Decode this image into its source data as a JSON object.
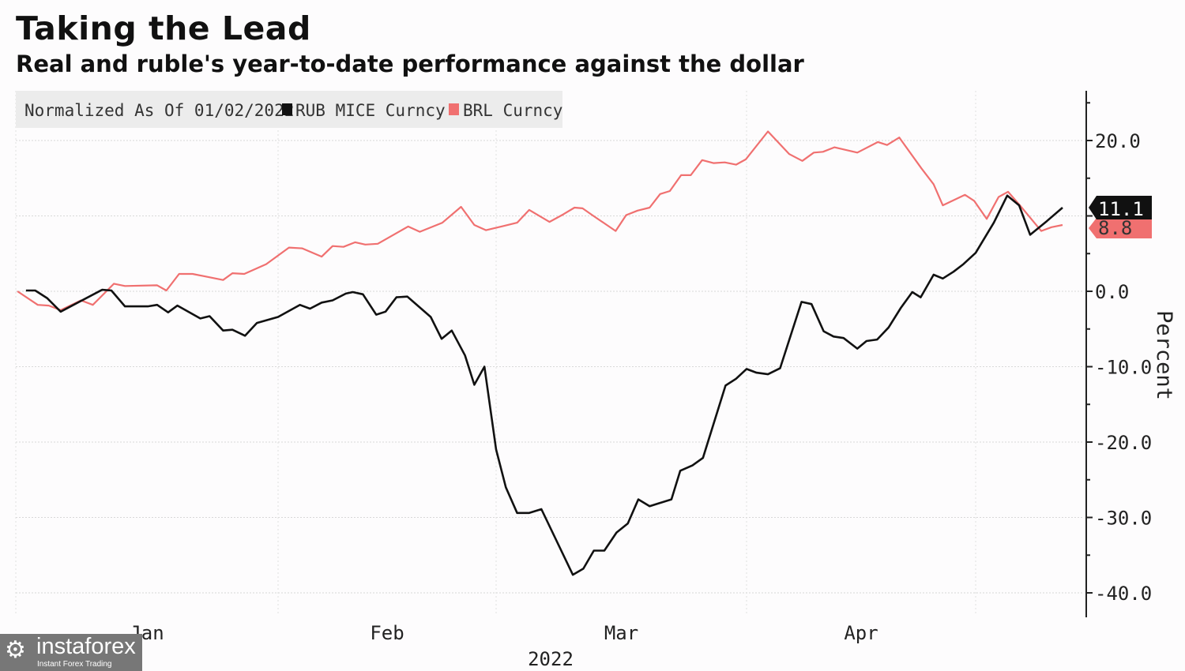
{
  "chart_data": {
    "type": "line",
    "title": "Taking the Lead",
    "subtitle": "Real and ruble's year-to-date performance against the dollar",
    "legend_note": "Normalized As Of 01/02/2022",
    "legend_position": "top-left",
    "xlabel": "2022",
    "ylabel": "Percent",
    "x_units": "days since Jan 1, 2022",
    "xlim": [
      0,
      131
    ],
    "ylim": [
      -42,
      26
    ],
    "month_boundaries": [
      0,
      31,
      59,
      90,
      120
    ],
    "x_tick_labels": [
      {
        "label": "Jan",
        "center": 15.5
      },
      {
        "label": "Feb",
        "center": 45
      },
      {
        "label": "Mar",
        "center": 74.5
      },
      {
        "label": "Apr",
        "center": 105
      }
    ],
    "y_ticks": [
      20,
      0,
      -10,
      -20,
      -30,
      -40
    ],
    "y_tick_labels": [
      "20.0",
      "0.0",
      "-10.0",
      "-20.0",
      "-30.0",
      "-40.0"
    ],
    "grid": true,
    "series": [
      {
        "name": "RUB MICE Curncy",
        "color": "#111111",
        "last_label": "11.1",
        "points": [
          [
            1.2,
            0.1
          ],
          [
            2.3,
            0.1
          ],
          [
            3.7,
            -0.9
          ],
          [
            5.3,
            -2.7
          ],
          [
            7.5,
            -1.4
          ],
          [
            10.2,
            0.2
          ],
          [
            11.3,
            0.1
          ],
          [
            12.9,
            -2.0
          ],
          [
            15.6,
            -2.0
          ],
          [
            16.7,
            -1.8
          ],
          [
            18.0,
            -2.8
          ],
          [
            19.1,
            -1.9
          ],
          [
            21.8,
            -3.6
          ],
          [
            22.9,
            -3.3
          ],
          [
            24.5,
            -5.2
          ],
          [
            25.6,
            -5.1
          ],
          [
            27.1,
            -5.9
          ],
          [
            28.5,
            -4.2
          ],
          [
            31.0,
            -3.4
          ],
          [
            33.8,
            -1.8
          ],
          [
            35.1,
            -2.3
          ],
          [
            36.6,
            -1.5
          ],
          [
            38.0,
            -1.2
          ],
          [
            39.7,
            -0.3
          ],
          [
            40.6,
            -0.1
          ],
          [
            41.9,
            -0.4
          ],
          [
            43.6,
            -3.1
          ],
          [
            44.8,
            -2.7
          ],
          [
            46.2,
            -0.8
          ],
          [
            47.6,
            -0.7
          ],
          [
            50.6,
            -3.4
          ],
          [
            52.0,
            -6.3
          ],
          [
            53.3,
            -5.2
          ],
          [
            55.0,
            -8.5
          ],
          [
            56.2,
            -12.4
          ],
          [
            57.5,
            -10.0
          ],
          [
            59.0,
            -21.0
          ],
          [
            60.2,
            -26.0
          ],
          [
            61.6,
            -29.4
          ],
          [
            63.1,
            -29.4
          ],
          [
            64.6,
            -28.9
          ],
          [
            68.5,
            -37.6
          ],
          [
            69.8,
            -36.8
          ],
          [
            71.1,
            -34.4
          ],
          [
            72.4,
            -34.4
          ],
          [
            73.9,
            -32.0
          ],
          [
            75.3,
            -30.8
          ],
          [
            76.6,
            -27.6
          ],
          [
            78.0,
            -28.5
          ],
          [
            79.2,
            -28.1
          ],
          [
            80.7,
            -27.6
          ],
          [
            81.8,
            -23.8
          ],
          [
            83.3,
            -23.1
          ],
          [
            84.6,
            -22.1
          ],
          [
            87.4,
            -12.5
          ],
          [
            88.7,
            -11.6
          ],
          [
            90.0,
            -10.3
          ],
          [
            91.3,
            -10.8
          ],
          [
            92.8,
            -11.0
          ],
          [
            94.4,
            -10.2
          ],
          [
            97.2,
            -1.4
          ],
          [
            98.5,
            -1.7
          ],
          [
            100.1,
            -5.3
          ],
          [
            101.4,
            -6.0
          ],
          [
            102.7,
            -6.2
          ],
          [
            104.5,
            -7.6
          ],
          [
            105.7,
            -6.6
          ],
          [
            107.1,
            -6.4
          ],
          [
            108.6,
            -4.8
          ],
          [
            110.2,
            -2.2
          ],
          [
            111.7,
            -0.1
          ],
          [
            112.8,
            -0.8
          ],
          [
            114.5,
            2.2
          ],
          [
            115.7,
            1.7
          ],
          [
            117.1,
            2.6
          ],
          [
            118.4,
            3.6
          ],
          [
            120.0,
            5.1
          ],
          [
            122.3,
            9.1
          ],
          [
            124.0,
            12.7
          ],
          [
            125.5,
            11.4
          ],
          [
            126.9,
            7.5
          ],
          [
            129.0,
            9.3
          ],
          [
            131.0,
            11.1
          ]
        ]
      },
      {
        "name": "BRL Curncy",
        "color": "#f07070",
        "last_label": "8.8",
        "points": [
          [
            0.2,
            0
          ],
          [
            2.6,
            -1.8
          ],
          [
            3.9,
            -1.9
          ],
          [
            5.3,
            -2.5
          ],
          [
            7.7,
            -1.2
          ],
          [
            9.1,
            -1.8
          ],
          [
            11.6,
            1.0
          ],
          [
            12.9,
            0.7
          ],
          [
            16.7,
            0.8
          ],
          [
            17.8,
            0.1
          ],
          [
            19.3,
            2.3
          ],
          [
            20.9,
            2.3
          ],
          [
            24.5,
            1.5
          ],
          [
            25.6,
            2.4
          ],
          [
            27.0,
            2.3
          ],
          [
            29.6,
            3.6
          ],
          [
            32.4,
            5.8
          ],
          [
            34.1,
            5.7
          ],
          [
            36.6,
            4.6
          ],
          [
            38.0,
            6.0
          ],
          [
            39.4,
            5.9
          ],
          [
            40.9,
            6.5
          ],
          [
            42.2,
            6.2
          ],
          [
            43.8,
            6.3
          ],
          [
            47.7,
            8.6
          ],
          [
            49.2,
            7.9
          ],
          [
            52.1,
            9.1
          ],
          [
            54.5,
            11.2
          ],
          [
            56.2,
            8.8
          ],
          [
            57.7,
            8.1
          ],
          [
            61.6,
            9.1
          ],
          [
            63.1,
            10.8
          ],
          [
            65.6,
            9.2
          ],
          [
            67.3,
            10.2
          ],
          [
            68.7,
            11.1
          ],
          [
            69.7,
            11.0
          ],
          [
            70.9,
            10.1
          ],
          [
            73.8,
            8.0
          ],
          [
            75.1,
            10.1
          ],
          [
            76.5,
            10.7
          ],
          [
            78.0,
            11.1
          ],
          [
            79.3,
            12.9
          ],
          [
            80.5,
            13.3
          ],
          [
            81.9,
            15.4
          ],
          [
            83.1,
            15.4
          ],
          [
            84.5,
            17.4
          ],
          [
            85.9,
            17.0
          ],
          [
            87.3,
            17.1
          ],
          [
            88.7,
            16.8
          ],
          [
            89.9,
            17.5
          ],
          [
            92.8,
            21.2
          ],
          [
            95.6,
            18.2
          ],
          [
            97.3,
            17.3
          ],
          [
            98.8,
            18.4
          ],
          [
            100.0,
            18.5
          ],
          [
            101.5,
            19.1
          ],
          [
            104.5,
            18.4
          ],
          [
            107.2,
            19.8
          ],
          [
            108.4,
            19.4
          ],
          [
            110.0,
            20.4
          ],
          [
            112.9,
            16.3
          ],
          [
            114.5,
            14.2
          ],
          [
            115.7,
            11.4
          ],
          [
            118.6,
            12.8
          ],
          [
            119.8,
            12.0
          ],
          [
            121.4,
            9.6
          ],
          [
            122.9,
            12.5
          ],
          [
            124.1,
            13.2
          ],
          [
            125.6,
            11.4
          ],
          [
            128.3,
            8.0
          ],
          [
            129.6,
            8.5
          ],
          [
            131.0,
            8.8
          ]
        ]
      }
    ]
  },
  "watermark": {
    "name": "instaforex",
    "tagline": "Instant Forex Trading"
  }
}
